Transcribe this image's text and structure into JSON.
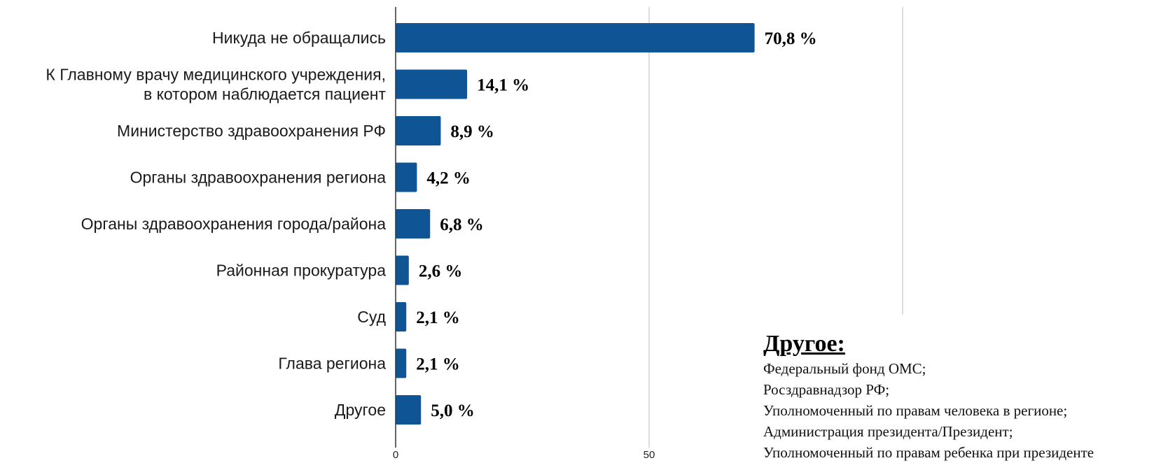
{
  "chart_data": {
    "type": "bar",
    "orientation": "horizontal",
    "categories": [
      [
        "Никуда не обращались"
      ],
      [
        "К Главному врачу медицинского учреждения,",
        "в котором наблюдается пациент"
      ],
      [
        "Министерство здравоохранения РФ"
      ],
      [
        "Органы здравоохранения региона"
      ],
      [
        "Органы здравоохранения города/района"
      ],
      [
        "Районная прокуратура"
      ],
      [
        "Суд"
      ],
      [
        "Глава региона"
      ],
      [
        "Другое"
      ]
    ],
    "values": [
      70.8,
      14.1,
      8.9,
      4.2,
      6.8,
      2.6,
      2.1,
      2.1,
      5.0
    ],
    "value_labels": [
      "70,8 %",
      "14,1 %",
      "8,9 %",
      "4,2 %",
      "6,8 %",
      "2,6 %",
      "2,1 %",
      "2,1 %",
      "5,0 %"
    ],
    "xlim": [
      0,
      100
    ],
    "x_ticks": [
      0,
      50
    ],
    "gridlines": [
      50,
      100
    ],
    "bar_color": "#0f5596",
    "grid": true
  },
  "other_note": {
    "title": "Другое:",
    "items": [
      "Федеральный фонд ОМС;",
      "Росздравнадзор РФ;",
      "Уполномоченный по правам человека в регионе;",
      "Администрация президента/Президент;",
      "Уполномоченный по правам ребенка при президенте"
    ]
  }
}
